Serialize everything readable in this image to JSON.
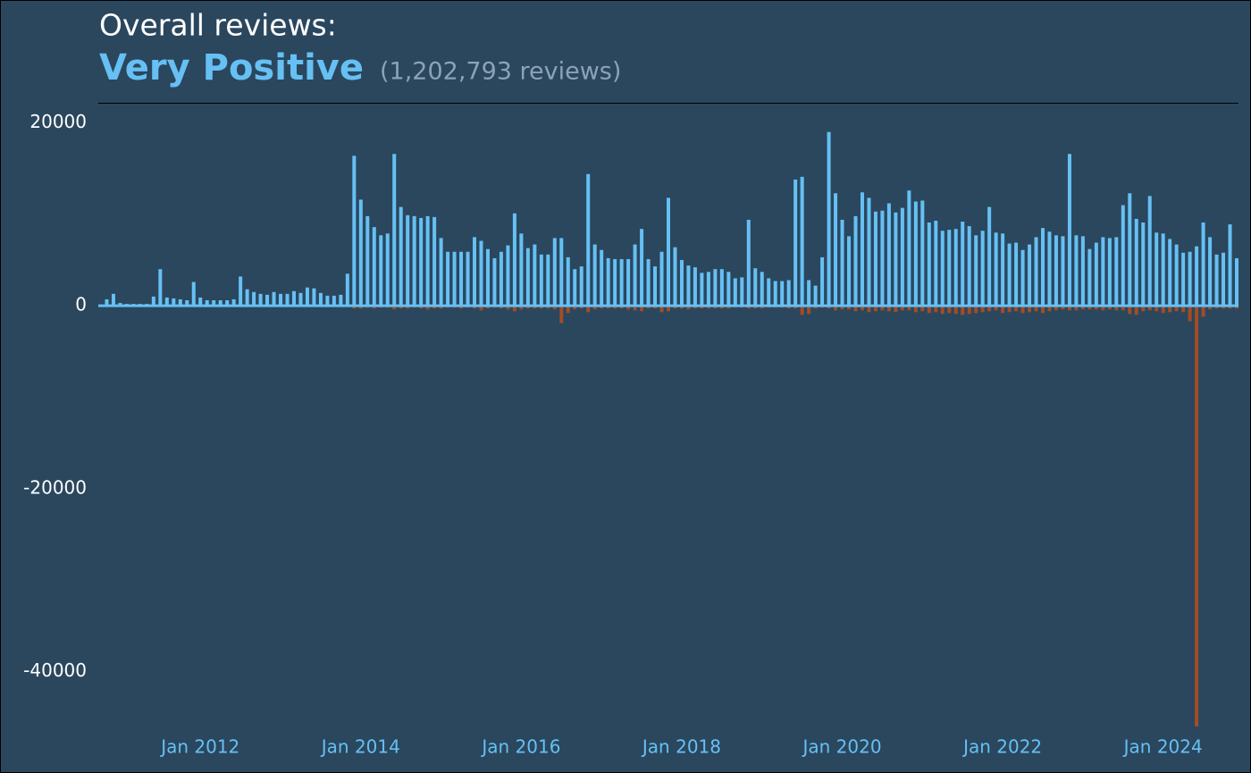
{
  "chart_data": {
    "type": "bar",
    "title": "Overall reviews:",
    "rating": "Very Positive",
    "review_count_label": "(1,202,793 reviews)",
    "x": [
      "2010-10",
      "2010-11",
      "2010-12",
      "2011-01",
      "2011-02",
      "2011-03",
      "2011-04",
      "2011-05",
      "2011-06",
      "2011-07",
      "2011-08",
      "2011-09",
      "2011-10",
      "2011-11",
      "2011-12",
      "2012-01",
      "2012-02",
      "2012-03",
      "2012-04",
      "2012-05",
      "2012-06",
      "2012-07",
      "2012-08",
      "2012-09",
      "2012-10",
      "2012-11",
      "2012-12",
      "2013-01",
      "2013-02",
      "2013-03",
      "2013-04",
      "2013-05",
      "2013-06",
      "2013-07",
      "2013-08",
      "2013-09",
      "2013-10",
      "2013-11",
      "2013-12",
      "2014-01",
      "2014-02",
      "2014-03",
      "2014-04",
      "2014-05",
      "2014-06",
      "2014-07",
      "2014-08",
      "2014-09",
      "2014-10",
      "2014-11",
      "2014-12",
      "2015-01",
      "2015-02",
      "2015-03",
      "2015-04",
      "2015-05",
      "2015-06",
      "2015-07",
      "2015-08",
      "2015-09",
      "2015-10",
      "2015-11",
      "2015-12",
      "2016-01",
      "2016-02",
      "2016-03",
      "2016-04",
      "2016-05",
      "2016-06",
      "2016-07",
      "2016-08",
      "2016-09",
      "2016-10",
      "2016-11",
      "2016-12",
      "2017-01",
      "2017-02",
      "2017-03",
      "2017-04",
      "2017-05",
      "2017-06",
      "2017-07",
      "2017-08",
      "2017-09",
      "2017-10",
      "2017-11",
      "2017-12",
      "2018-01",
      "2018-02",
      "2018-03",
      "2018-04",
      "2018-05",
      "2018-06",
      "2018-07",
      "2018-08",
      "2018-09",
      "2018-10",
      "2018-11",
      "2018-12",
      "2019-01",
      "2019-02",
      "2019-03",
      "2019-04",
      "2019-05",
      "2019-06",
      "2019-07",
      "2019-08",
      "2019-09",
      "2019-10",
      "2019-11",
      "2019-12",
      "2020-01",
      "2020-02",
      "2020-03",
      "2020-04",
      "2020-05",
      "2020-06",
      "2020-07",
      "2020-08",
      "2020-09",
      "2020-10",
      "2020-11",
      "2020-12",
      "2021-01",
      "2021-02",
      "2021-03",
      "2021-04",
      "2021-05",
      "2021-06",
      "2021-07",
      "2021-08",
      "2021-09",
      "2021-10",
      "2021-11",
      "2021-12",
      "2022-01",
      "2022-02",
      "2022-03",
      "2022-04",
      "2022-05",
      "2022-06",
      "2022-07",
      "2022-08",
      "2022-09",
      "2022-10",
      "2022-11",
      "2022-12",
      "2023-01",
      "2023-02",
      "2023-03",
      "2023-04",
      "2023-05",
      "2023-06",
      "2023-07",
      "2023-08",
      "2023-09",
      "2023-10",
      "2023-11",
      "2023-12",
      "2024-01",
      "2024-02",
      "2024-03",
      "2024-04",
      "2024-05",
      "2024-06",
      "2024-07",
      "2024-08",
      "2024-09",
      "2024-10",
      "2024-11",
      "2024-12"
    ],
    "series": [
      {
        "color": "#66c0f4",
        "values": [
          100,
          700,
          1300,
          300,
          200,
          200,
          200,
          200,
          1000,
          4000,
          900,
          800,
          700,
          600,
          2600,
          900,
          600,
          600,
          600,
          600,
          700,
          3200,
          1800,
          1500,
          1300,
          1200,
          1500,
          1300,
          1300,
          1600,
          1400,
          2000,
          1900,
          1400,
          1100,
          1100,
          1200,
          3500,
          16400,
          11600,
          9800,
          8600,
          7700,
          7900,
          16600,
          10800,
          9900,
          9800,
          9600,
          9800,
          9700,
          7400,
          5900,
          5900,
          5900,
          5900,
          7500,
          7100,
          6200,
          5200,
          5900,
          6600,
          10100,
          7900,
          6300,
          6700,
          5600,
          5600,
          7400,
          7400,
          5300,
          4000,
          4300,
          14400,
          6700,
          6100,
          5200,
          5100,
          5100,
          5100,
          6700,
          8400,
          5100,
          4300,
          5900,
          11800,
          6400,
          5000,
          4400,
          4200,
          3600,
          3700,
          4000,
          4000,
          3700,
          3000,
          3100,
          9400,
          4100,
          3700,
          3000,
          2700,
          2700,
          2800,
          13800,
          14100,
          2800,
          2200,
          5300,
          19000,
          12300,
          9400,
          7600,
          9800,
          12400,
          11800,
          10300,
          10400,
          11200,
          10200,
          10700,
          12600,
          11400,
          11500,
          9100,
          9300,
          8200,
          8300,
          8400,
          9200,
          8700,
          7700,
          8200,
          10800,
          8000,
          7900,
          6800,
          6900,
          6100,
          6700,
          7500,
          8500,
          8100,
          7700,
          7600,
          16600,
          7700,
          7600,
          6200,
          6900,
          7500,
          7400,
          7500,
          11000,
          12300,
          9500,
          9100,
          12000,
          8000,
          7900,
          7300,
          6700,
          5800,
          5900,
          6500,
          9100,
          7500,
          5600,
          5800,
          8900,
          5200
        ]
      },
      {
        "color": "#a34c25",
        "values": [
          0,
          0,
          0,
          0,
          0,
          0,
          0,
          0,
          0,
          0,
          0,
          0,
          0,
          0,
          0,
          0,
          0,
          0,
          0,
          0,
          0,
          0,
          0,
          0,
          0,
          0,
          0,
          0,
          0,
          0,
          0,
          0,
          0,
          0,
          0,
          0,
          0,
          0,
          -300,
          -300,
          -200,
          -300,
          -200,
          -200,
          -400,
          -300,
          -300,
          -200,
          -300,
          -400,
          -300,
          -300,
          -200,
          -200,
          -300,
          -200,
          -300,
          -500,
          -300,
          -200,
          -300,
          -400,
          -600,
          -400,
          -300,
          -300,
          -300,
          -300,
          -400,
          -1900,
          -800,
          -400,
          -300,
          -700,
          -400,
          -300,
          -300,
          -300,
          -300,
          -400,
          -500,
          -600,
          -300,
          -300,
          -700,
          -600,
          -300,
          -300,
          -400,
          -300,
          -300,
          -300,
          -300,
          -300,
          -300,
          -200,
          -200,
          -300,
          -300,
          -300,
          -200,
          -200,
          -200,
          -300,
          -300,
          -1000,
          -900,
          -300,
          -200,
          -300,
          -500,
          -400,
          -400,
          -600,
          -500,
          -700,
          -600,
          -500,
          -600,
          -700,
          -500,
          -500,
          -700,
          -600,
          -800,
          -700,
          -900,
          -800,
          -900,
          -1000,
          -900,
          -800,
          -700,
          -600,
          -500,
          -800,
          -700,
          -600,
          -800,
          -700,
          -600,
          -800,
          -600,
          -500,
          -400,
          -500,
          -500,
          -400,
          -400,
          -400,
          -500,
          -400,
          -500,
          -500,
          -900,
          -1000,
          -600,
          -500,
          -600,
          -800,
          -700,
          -600,
          -700,
          -1700,
          -46000,
          -1200,
          -400,
          -300,
          -300,
          -300,
          -300
        ]
      }
    ],
    "xlim": [
      "2010-10",
      "2024-12"
    ],
    "xticks": [
      {
        "value": "2012-01",
        "label": "Jan 2012"
      },
      {
        "value": "2014-01",
        "label": "Jan 2014"
      },
      {
        "value": "2016-01",
        "label": "Jan 2016"
      },
      {
        "value": "2018-01",
        "label": "Jan 2018"
      },
      {
        "value": "2020-01",
        "label": "Jan 2020"
      },
      {
        "value": "2022-01",
        "label": "Jan 2022"
      },
      {
        "value": "2024-01",
        "label": "Jan 2024"
      }
    ],
    "ylim": [
      -46500,
      22000
    ],
    "yticks": [
      20000,
      0,
      -20000,
      -40000
    ],
    "grid": false
  }
}
